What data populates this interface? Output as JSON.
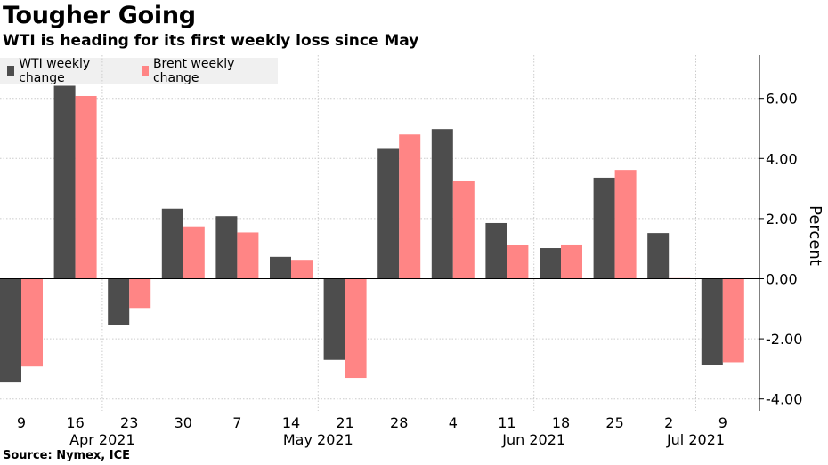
{
  "header": {
    "title": "Tougher Going",
    "subtitle": "WTI is heading for its first weekly loss since May"
  },
  "footer": {
    "source": "Source: Nymex, ICE"
  },
  "colors": {
    "wti": "#4d4d4d",
    "brent": "#ff8585",
    "grid": "#cccccc",
    "axis": "#000000"
  },
  "chart_data": {
    "type": "bar",
    "title": "Tougher Going",
    "subtitle": "WTI is heading for its first weekly loss since May",
    "ylabel": "Percent",
    "ylim": [
      -4.0,
      7.3
    ],
    "yticks": [
      6.0,
      4.0,
      2.0,
      0.0,
      -2.0,
      -4.0
    ],
    "ytick_labels": [
      "6.00",
      "4.00",
      "2.00",
      "0.00",
      "-2.00",
      "-4.00"
    ],
    "y_axis_side": "right",
    "grid": true,
    "legend_position": "top-left",
    "categories": [
      "9",
      "16",
      "23",
      "30",
      "7",
      "14",
      "21",
      "28",
      "4",
      "11",
      "18",
      "25",
      "2",
      "9"
    ],
    "month_labels": [
      {
        "label": "Apr 2021",
        "index": 1.5
      },
      {
        "label": "May 2021",
        "index": 5.5
      },
      {
        "label": "Jun 2021",
        "index": 9.5
      },
      {
        "label": "Jul 2021",
        "index": 12.5
      }
    ],
    "series": [
      {
        "name": "WTI weekly change",
        "values": [
          -3.45,
          6.42,
          -1.55,
          2.33,
          2.08,
          0.73,
          -2.7,
          4.32,
          4.98,
          1.85,
          1.02,
          3.36,
          1.52,
          -2.88
        ]
      },
      {
        "name": "Brent weekly change",
        "values": [
          -2.92,
          6.08,
          -0.97,
          1.74,
          1.54,
          0.63,
          -3.3,
          4.8,
          3.24,
          1.12,
          1.14,
          3.62,
          0.02,
          -2.78
        ]
      }
    ]
  }
}
